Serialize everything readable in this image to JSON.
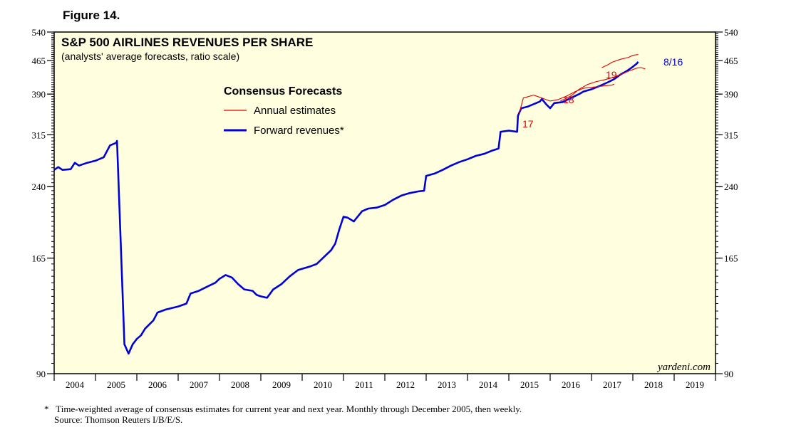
{
  "figure_label": "Figure 14.",
  "footnote": {
    "marker": "*",
    "note": "Time-weighted average of consensus estimates for current year and next year. Monthly through December 2005, then weekly.",
    "source": "Source: Thomson Reuters I/B/E/S."
  },
  "colors": {
    "plot_bg": "#FFFFE0",
    "forward": "#0000DD",
    "annual": "#E00000",
    "date_label": "#0000DD"
  },
  "chart_data": {
    "type": "line",
    "title": "S&P 500 AIRLINES REVENUES PER SHARE",
    "subtitle": "(analysts' average forecasts, ratio scale)",
    "scale": "log",
    "ylim": [
      90,
      540
    ],
    "yticks": [
      90,
      165,
      240,
      315,
      390,
      465,
      540
    ],
    "ytick_labels": [
      "90",
      "165",
      "240",
      "315",
      "390",
      "465",
      "540"
    ],
    "xlim": [
      2004,
      2020
    ],
    "xtick_labels": [
      "2004",
      "2005",
      "2006",
      "2007",
      "2008",
      "2009",
      "2010",
      "2011",
      "2012",
      "2013",
      "2014",
      "2015",
      "2016",
      "2017",
      "2018",
      "2019"
    ],
    "legend": {
      "title": "Consensus Forecasts",
      "placement": "top-center",
      "items": [
        "Annual estimates",
        "Forward revenues*"
      ]
    },
    "watermark": "yardeni.com",
    "annotations": [
      "17",
      "18",
      "19",
      "8/16"
    ],
    "series": [
      {
        "name": "Forward revenues*",
        "points": [
          [
            2004.0,
            262
          ],
          [
            2004.1,
            266
          ],
          [
            2004.2,
            262
          ],
          [
            2004.4,
            263
          ],
          [
            2004.5,
            272
          ],
          [
            2004.6,
            268
          ],
          [
            2004.8,
            272
          ],
          [
            2005.0,
            275
          ],
          [
            2005.2,
            280
          ],
          [
            2005.35,
            298
          ],
          [
            2005.5,
            302
          ],
          [
            2005.52,
            305
          ],
          [
            2005.7,
            105
          ],
          [
            2005.8,
            100
          ],
          [
            2005.9,
            105
          ],
          [
            2006.0,
            108
          ],
          [
            2006.1,
            110
          ],
          [
            2006.2,
            114
          ],
          [
            2006.4,
            119
          ],
          [
            2006.5,
            124
          ],
          [
            2006.7,
            126
          ],
          [
            2007.0,
            128
          ],
          [
            2007.2,
            130
          ],
          [
            2007.3,
            137
          ],
          [
            2007.5,
            139
          ],
          [
            2007.7,
            142
          ],
          [
            2007.9,
            145
          ],
          [
            2008.0,
            148
          ],
          [
            2008.15,
            151
          ],
          [
            2008.3,
            149
          ],
          [
            2008.45,
            144
          ],
          [
            2008.6,
            140
          ],
          [
            2008.8,
            139
          ],
          [
            2008.9,
            136
          ],
          [
            2009.0,
            135
          ],
          [
            2009.15,
            134
          ],
          [
            2009.3,
            140
          ],
          [
            2009.5,
            144
          ],
          [
            2009.7,
            150
          ],
          [
            2009.9,
            155
          ],
          [
            2010.0,
            156
          ],
          [
            2010.2,
            158
          ],
          [
            2010.35,
            160
          ],
          [
            2010.5,
            165
          ],
          [
            2010.7,
            172
          ],
          [
            2010.8,
            178
          ],
          [
            2010.9,
            192
          ],
          [
            2011.0,
            205
          ],
          [
            2011.1,
            204
          ],
          [
            2011.25,
            200
          ],
          [
            2011.45,
            211
          ],
          [
            2011.6,
            214
          ],
          [
            2011.8,
            215
          ],
          [
            2012.0,
            218
          ],
          [
            2012.2,
            224
          ],
          [
            2012.4,
            229
          ],
          [
            2012.6,
            232
          ],
          [
            2012.8,
            234
          ],
          [
            2012.95,
            235
          ],
          [
            2013.0,
            254
          ],
          [
            2013.2,
            257
          ],
          [
            2013.4,
            262
          ],
          [
            2013.6,
            268
          ],
          [
            2013.8,
            273
          ],
          [
            2014.0,
            277
          ],
          [
            2014.2,
            282
          ],
          [
            2014.4,
            285
          ],
          [
            2014.6,
            290
          ],
          [
            2014.75,
            293
          ],
          [
            2014.8,
            320
          ],
          [
            2015.0,
            322
          ],
          [
            2015.2,
            320
          ],
          [
            2015.22,
            348
          ],
          [
            2015.3,
            362
          ],
          [
            2015.45,
            365
          ],
          [
            2015.6,
            370
          ],
          [
            2015.75,
            375
          ],
          [
            2015.8,
            380
          ],
          [
            2015.9,
            370
          ],
          [
            2016.0,
            362
          ],
          [
            2016.1,
            372
          ],
          [
            2016.3,
            374
          ],
          [
            2016.5,
            382
          ],
          [
            2016.7,
            390
          ],
          [
            2016.8,
            395
          ],
          [
            2017.0,
            400
          ],
          [
            2017.2,
            407
          ],
          [
            2017.4,
            415
          ],
          [
            2017.55,
            422
          ],
          [
            2017.7,
            432
          ],
          [
            2017.85,
            440
          ],
          [
            2018.0,
            450
          ],
          [
            2018.1,
            458
          ],
          [
            2018.13,
            462
          ]
        ]
      },
      {
        "name": "Annual estimates 2017",
        "points": [
          [
            2015.25,
            352
          ],
          [
            2015.35,
            382
          ],
          [
            2015.6,
            388
          ],
          [
            2015.8,
            382
          ],
          [
            2016.0,
            376
          ],
          [
            2016.2,
            379
          ],
          [
            2016.4,
            386
          ],
          [
            2016.6,
            395
          ],
          [
            2016.8,
            402
          ],
          [
            2017.0,
            404
          ],
          [
            2017.3,
            407
          ],
          [
            2017.5,
            409
          ],
          [
            2017.55,
            411
          ]
        ]
      },
      {
        "name": "Annual estimates 2018",
        "points": [
          [
            2016.25,
            376
          ],
          [
            2016.5,
            386
          ],
          [
            2016.7,
            400
          ],
          [
            2016.9,
            410
          ],
          [
            2017.1,
            416
          ],
          [
            2017.3,
            420
          ],
          [
            2017.5,
            425
          ],
          [
            2017.7,
            432
          ],
          [
            2017.9,
            440
          ],
          [
            2018.1,
            447
          ],
          [
            2018.2,
            448
          ],
          [
            2018.3,
            445
          ]
        ]
      },
      {
        "name": "Annual estimates 2019",
        "points": [
          [
            2017.25,
            448
          ],
          [
            2017.4,
            455
          ],
          [
            2017.5,
            461
          ],
          [
            2017.7,
            468
          ],
          [
            2017.9,
            473
          ],
          [
            2018.0,
            478
          ],
          [
            2018.13,
            480
          ]
        ]
      }
    ]
  }
}
